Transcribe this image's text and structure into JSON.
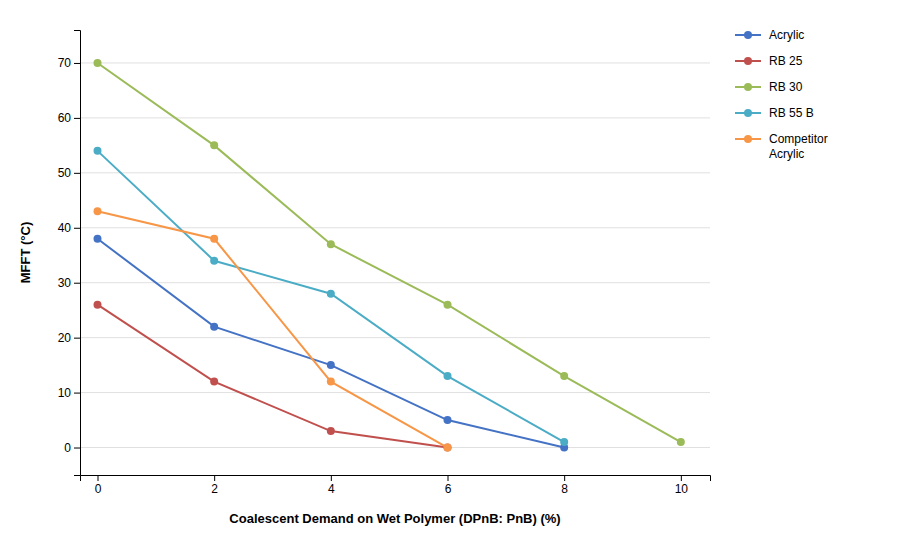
{
  "chart_data": {
    "type": "line",
    "x": [
      0,
      2,
      4,
      6,
      8,
      10
    ],
    "series": [
      {
        "name": "Acrylic",
        "color": "#4472C4",
        "values": [
          38,
          22,
          15,
          5,
          0,
          null
        ]
      },
      {
        "name": "RB 25",
        "color": "#C0504D",
        "values": [
          26,
          12,
          3,
          0,
          null,
          null
        ]
      },
      {
        "name": "RB 30",
        "color": "#9BBB59",
        "values": [
          70,
          55,
          37,
          26,
          13,
          1
        ]
      },
      {
        "name": "RB 55 B",
        "color": "#4BACC6",
        "values": [
          54,
          34,
          28,
          13,
          1,
          null
        ]
      },
      {
        "name": "Competitor\nAcrylic",
        "color": "#F79646",
        "values": [
          43,
          38,
          12,
          0,
          null,
          null
        ]
      }
    ],
    "x_label": "Coalescent Demand on Wet Polymer (DPnB: PnB) (%)",
    "y_label": "MFFT (°C)",
    "xlim": [
      -0.3,
      10.5
    ],
    "ylim": [
      -5,
      76
    ],
    "xticks": [
      0,
      2,
      4,
      6,
      8,
      10
    ],
    "yticks": [
      0,
      10,
      20,
      30,
      40,
      50,
      60,
      70
    ],
    "grid": true,
    "legend": "right",
    "marker": "circle"
  }
}
